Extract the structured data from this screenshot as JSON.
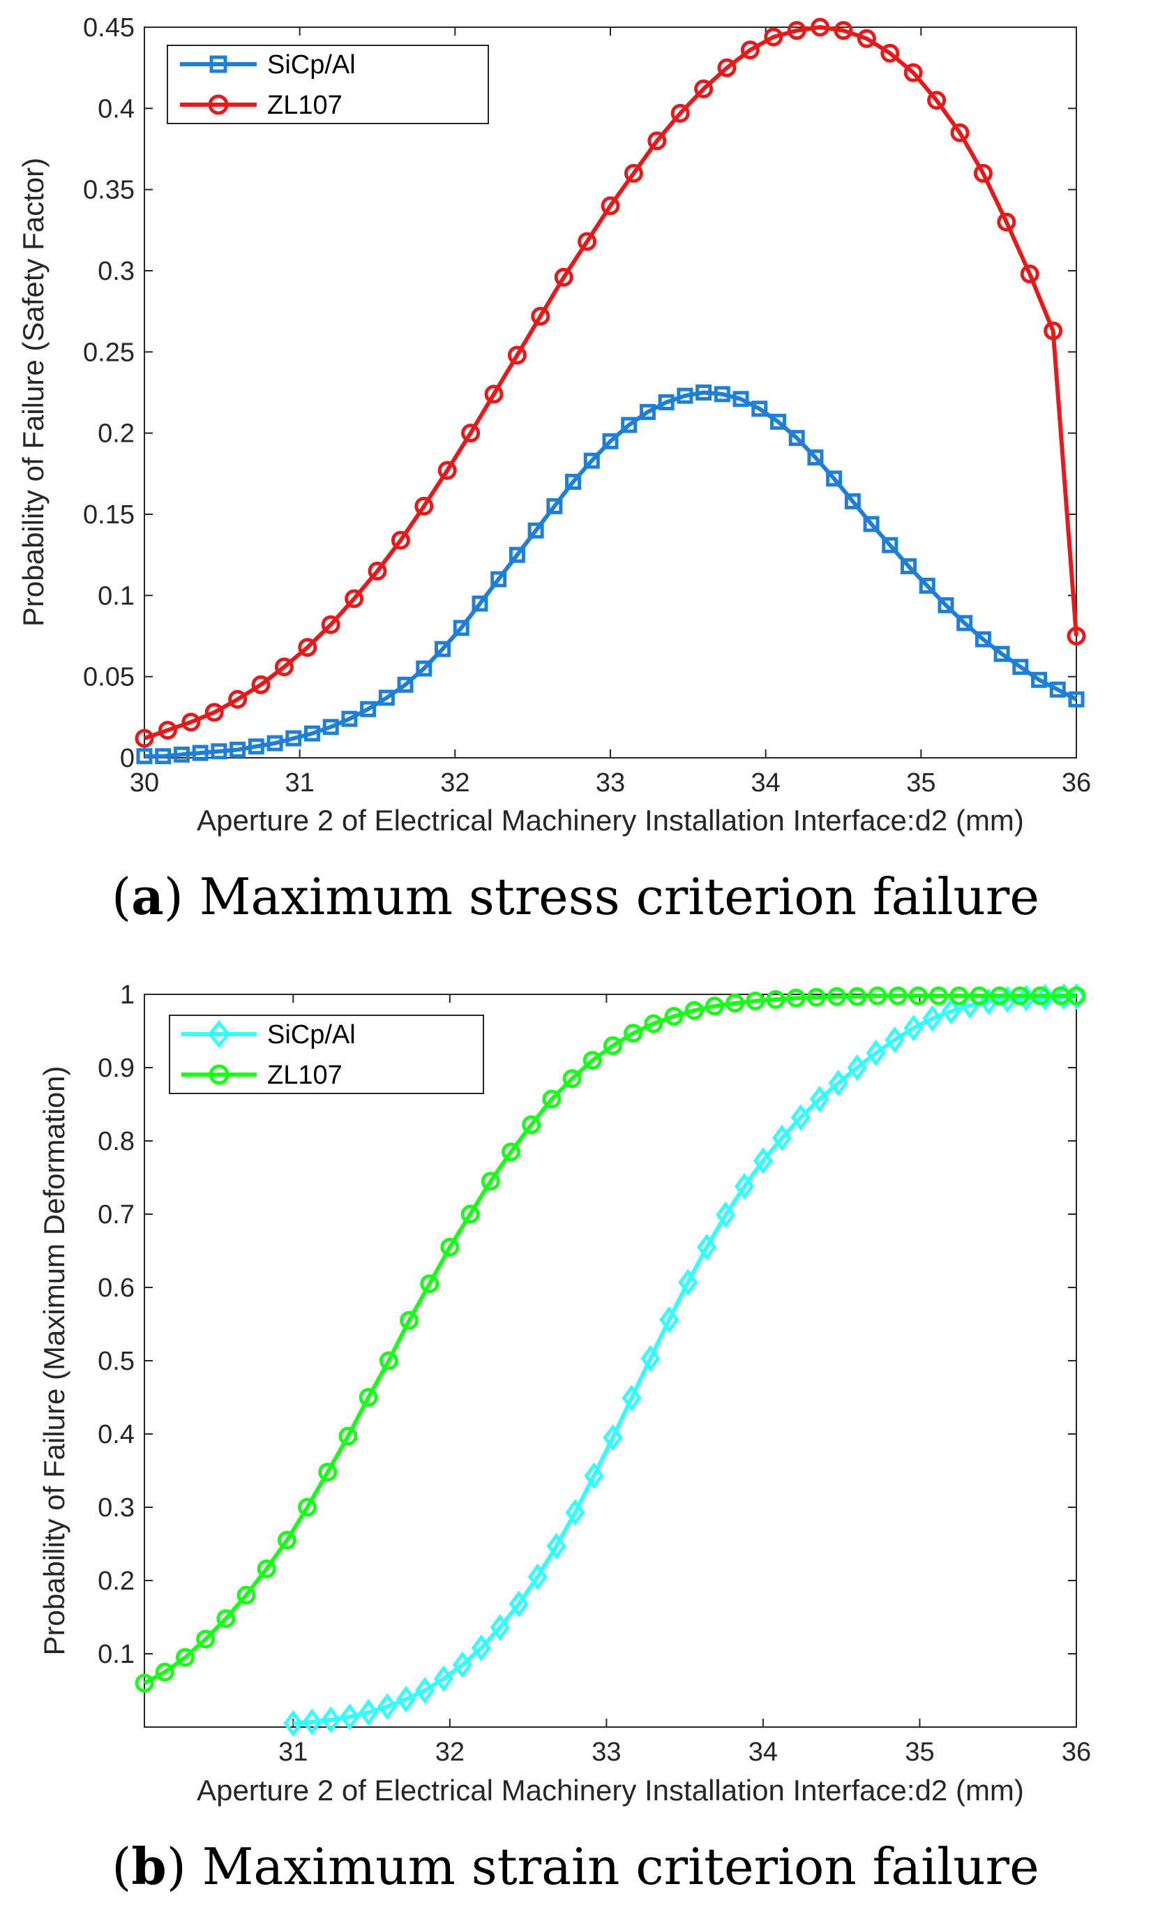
{
  "chart_data": [
    {
      "type": "line",
      "panel": "a",
      "caption_letter": "a",
      "caption_text": "Maximum stress criterion failure",
      "xlabel": "Aperture 2 of Electrical Machinery Installation Interface:d2 (mm)",
      "ylabel": "Probability of Failure (Safety Factor)",
      "xlim": [
        30,
        36
      ],
      "ylim": [
        0,
        0.45
      ],
      "xticks": [
        "30",
        "31",
        "32",
        "33",
        "34",
        "35",
        "36"
      ],
      "yticks": [
        "0",
        "0.05",
        "0.1",
        "0.15",
        "0.2",
        "0.25",
        "0.3",
        "0.35",
        "0.4",
        "0.45"
      ],
      "legend_position": "top-left",
      "series": [
        {
          "name": "SiCp/Al",
          "color": "#1f7fd6",
          "marker": "square",
          "x": [
            30.0,
            30.12,
            30.24,
            30.36,
            30.48,
            30.6,
            30.72,
            30.84,
            30.96,
            31.08,
            31.2,
            31.32,
            31.44,
            31.56,
            31.68,
            31.8,
            31.92,
            32.04,
            32.16,
            32.28,
            32.4,
            32.52,
            32.64,
            32.76,
            32.88,
            33.0,
            33.12,
            33.24,
            33.36,
            33.48,
            33.6,
            33.72,
            33.84,
            33.96,
            34.08,
            34.2,
            34.32,
            34.44,
            34.56,
            34.68,
            34.8,
            34.92,
            35.04,
            35.16,
            35.28,
            35.4,
            35.52,
            35.64,
            35.76,
            35.88,
            36.0
          ],
          "y": [
            0.001,
            0.001,
            0.002,
            0.003,
            0.004,
            0.005,
            0.007,
            0.009,
            0.012,
            0.015,
            0.019,
            0.024,
            0.03,
            0.037,
            0.045,
            0.055,
            0.067,
            0.08,
            0.095,
            0.11,
            0.125,
            0.14,
            0.155,
            0.17,
            0.183,
            0.195,
            0.205,
            0.213,
            0.219,
            0.223,
            0.225,
            0.224,
            0.221,
            0.215,
            0.207,
            0.197,
            0.185,
            0.172,
            0.158,
            0.144,
            0.131,
            0.118,
            0.106,
            0.094,
            0.083,
            0.073,
            0.064,
            0.056,
            0.048,
            0.042,
            0.036
          ]
        },
        {
          "name": "ZL107",
          "color": "#e61a1a",
          "marker": "circle",
          "x": [
            30.0,
            30.15,
            30.3,
            30.45,
            30.6,
            30.75,
            30.9,
            31.05,
            31.2,
            31.35,
            31.5,
            31.65,
            31.8,
            31.95,
            32.1,
            32.25,
            32.4,
            32.55,
            32.7,
            32.85,
            33.0,
            33.15,
            33.3,
            33.45,
            33.6,
            33.75,
            33.9,
            34.05,
            34.2,
            34.35,
            34.5,
            34.65,
            34.8,
            34.95,
            35.1,
            35.25,
            35.4,
            35.55,
            35.7,
            35.85,
            36.0
          ],
          "y": [
            0.012,
            0.017,
            0.022,
            0.028,
            0.036,
            0.045,
            0.056,
            0.068,
            0.082,
            0.098,
            0.115,
            0.134,
            0.155,
            0.177,
            0.2,
            0.224,
            0.248,
            0.272,
            0.296,
            0.318,
            0.34,
            0.36,
            0.38,
            0.397,
            0.412,
            0.425,
            0.436,
            0.444,
            0.448,
            0.45,
            0.448,
            0.443,
            0.434,
            0.422,
            0.405,
            0.385,
            0.36,
            0.33,
            0.298,
            0.263,
            0.075
          ]
        }
      ]
    },
    {
      "type": "line",
      "panel": "b",
      "caption_letter": "b",
      "caption_text": "Maximum strain criterion failure",
      "xlabel": "Aperture 2 of Electrical Machinery Installation Interface:d2 (mm)",
      "ylabel": "Probability of Failure (Maximum Deformation)",
      "xlim": [
        30.05,
        36.0
      ],
      "ylim": [
        0.0,
        1.0
      ],
      "xticks": [
        "31",
        "32",
        "33",
        "34",
        "35",
        "36"
      ],
      "yticks": [
        "0.1",
        "0.2",
        "0.3",
        "0.4",
        "0.5",
        "0.6",
        "0.7",
        "0.8",
        "0.9",
        "1"
      ],
      "legend_position": "top-left",
      "series": [
        {
          "name": "SiCp/Al",
          "color": "#33ffff",
          "marker": "diamond",
          "x": [
            31.0,
            31.12,
            31.24,
            31.36,
            31.48,
            31.6,
            31.72,
            31.84,
            31.96,
            32.08,
            32.2,
            32.32,
            32.44,
            32.56,
            32.68,
            32.8,
            32.92,
            33.04,
            33.16,
            33.28,
            33.4,
            33.52,
            33.64,
            33.76,
            33.88,
            34.0,
            34.12,
            34.24,
            34.36,
            34.48,
            34.6,
            34.72,
            34.84,
            34.96,
            35.08,
            35.2,
            35.32,
            35.44,
            35.56,
            35.68,
            35.8,
            35.92,
            36.0
          ],
          "y": [
            0.005,
            0.007,
            0.01,
            0.014,
            0.02,
            0.028,
            0.038,
            0.05,
            0.066,
            0.085,
            0.108,
            0.136,
            0.168,
            0.205,
            0.247,
            0.293,
            0.343,
            0.395,
            0.449,
            0.503,
            0.556,
            0.607,
            0.655,
            0.699,
            0.738,
            0.773,
            0.804,
            0.832,
            0.857,
            0.879,
            0.9,
            0.92,
            0.938,
            0.954,
            0.967,
            0.977,
            0.985,
            0.99,
            0.993,
            0.995,
            0.996,
            0.997,
            0.997
          ]
        },
        {
          "name": "ZL107",
          "color": "#1aff1a",
          "marker": "circle",
          "x": [
            30.05,
            30.18,
            30.31,
            30.44,
            30.57,
            30.7,
            30.83,
            30.96,
            31.09,
            31.22,
            31.35,
            31.48,
            31.61,
            31.74,
            31.87,
            32.0,
            32.13,
            32.26,
            32.39,
            32.52,
            32.65,
            32.78,
            32.91,
            33.04,
            33.17,
            33.3,
            33.43,
            33.56,
            33.69,
            33.82,
            33.95,
            34.08,
            34.21,
            34.34,
            34.47,
            34.6,
            34.73,
            34.86,
            34.99,
            35.12,
            35.25,
            35.38,
            35.51,
            35.64,
            35.77,
            35.9,
            36.0
          ],
          "y": [
            0.06,
            0.075,
            0.095,
            0.12,
            0.148,
            0.18,
            0.216,
            0.255,
            0.3,
            0.348,
            0.397,
            0.45,
            0.5,
            0.555,
            0.605,
            0.655,
            0.7,
            0.745,
            0.785,
            0.822,
            0.857,
            0.885,
            0.91,
            0.93,
            0.947,
            0.96,
            0.97,
            0.978,
            0.984,
            0.988,
            0.991,
            0.993,
            0.995,
            0.996,
            0.997,
            0.997,
            0.998,
            0.998,
            0.998,
            0.998,
            0.998,
            0.998,
            0.998,
            0.998,
            0.998,
            0.998,
            0.998
          ]
        }
      ]
    }
  ]
}
